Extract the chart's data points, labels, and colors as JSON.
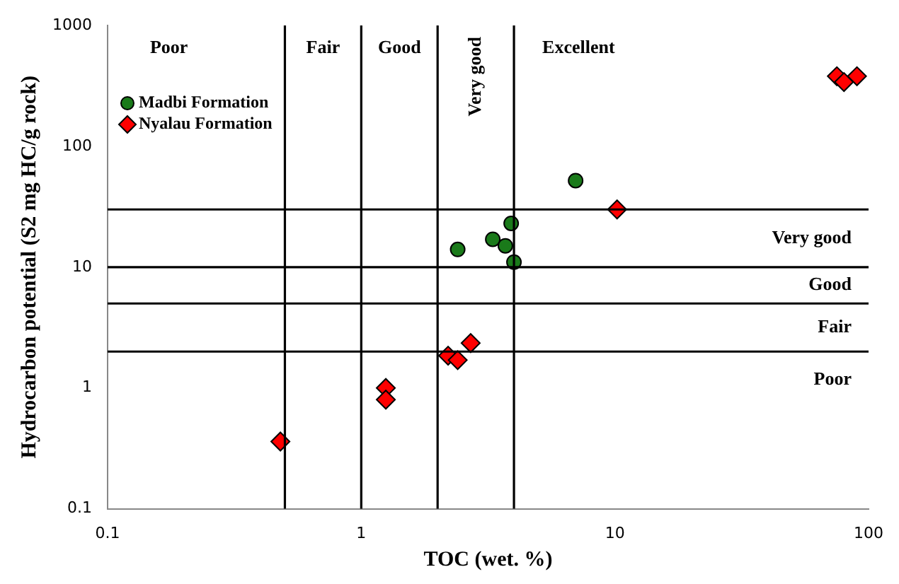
{
  "chart_data": {
    "type": "scatter",
    "xlabel": "TOC (wet. %)",
    "ylabel": "Hydrocarbon potential (S2 mg HC/g rock)",
    "log": "xy",
    "xlim": [
      0.1,
      100
    ],
    "ylim": [
      0.1,
      1000
    ],
    "xticks": [
      0.1,
      1,
      10,
      100
    ],
    "yticks": [
      0.1,
      1,
      10,
      100,
      1000
    ],
    "grid": false,
    "legend": "top left",
    "series": [
      {
        "name": "Madbi Formation",
        "color": "#1a7a1a",
        "marker": "circle",
        "x": [
          2.4,
          3.3,
          3.7,
          3.9,
          4.0,
          7
        ],
        "values": [
          14,
          17,
          15,
          23,
          11,
          52
        ]
      },
      {
        "name": "Nyalau Formation",
        "color": "#ff0000",
        "marker": "diamond",
        "x": [
          0.48,
          1.25,
          1.25,
          2.2,
          2.4,
          2.7,
          10.2,
          75,
          80,
          90
        ],
        "values": [
          0.36,
          1.0,
          0.8,
          1.85,
          1.7,
          2.35,
          30,
          380,
          340,
          380
        ]
      }
    ],
    "ref_lines": [
      {
        "axis": "x",
        "value": 0.5
      },
      {
        "axis": "x",
        "value": 1
      },
      {
        "axis": "x",
        "value": 2
      },
      {
        "axis": "x",
        "value": 4
      },
      {
        "axis": "y",
        "value": 2
      },
      {
        "axis": "y",
        "value": 5
      },
      {
        "axis": "y",
        "value": 10
      },
      {
        "axis": "y",
        "value": 30
      }
    ],
    "annotations": [
      "Poor",
      "Fair",
      "Good",
      "Very good",
      "Excellent",
      "Very good",
      "Good",
      "Fair",
      "Poor"
    ]
  }
}
